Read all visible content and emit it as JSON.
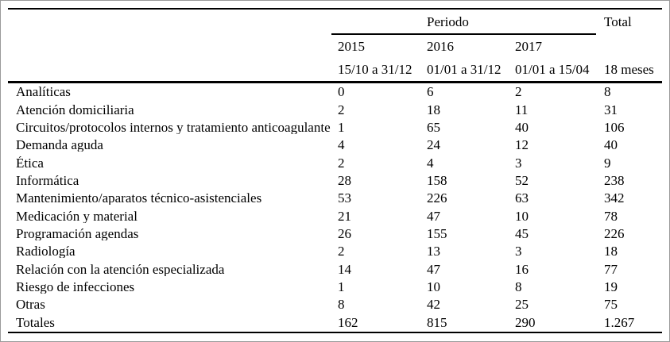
{
  "table": {
    "header": {
      "periodo_label": "Periodo",
      "total_label": "Total",
      "years": [
        "2015",
        "2016",
        "2017"
      ],
      "ranges": [
        "15/10 a 31/12",
        "01/01 a 31/12",
        "01/01 a 15/04"
      ],
      "total_sub": "18 meses"
    },
    "rows": [
      {
        "label": "Analíticas",
        "values": [
          "0",
          "6",
          "2",
          "8"
        ]
      },
      {
        "label": "Atención domiciliaria",
        "values": [
          "2",
          "18",
          "11",
          "31"
        ]
      },
      {
        "label": "Circuitos/protocolos internos y tratamiento anticoagulante",
        "values": [
          "1",
          "65",
          "40",
          "106"
        ]
      },
      {
        "label": "Demanda aguda",
        "values": [
          "4",
          "24",
          "12",
          "40"
        ]
      },
      {
        "label": "Ética",
        "values": [
          "2",
          "4",
          "3",
          "9"
        ]
      },
      {
        "label": "Informática",
        "values": [
          "28",
          "158",
          "52",
          "238"
        ]
      },
      {
        "label": "Mantenimiento/aparatos técnico-asistenciales",
        "values": [
          "53",
          "226",
          "63",
          "342"
        ]
      },
      {
        "label": "Medicación y material",
        "values": [
          "21",
          "47",
          "10",
          "78"
        ]
      },
      {
        "label": "Programación agendas",
        "values": [
          "26",
          "155",
          "45",
          "226"
        ]
      },
      {
        "label": "Radiología",
        "values": [
          "2",
          "13",
          "3",
          "18"
        ]
      },
      {
        "label": "Relación con la atención especializada",
        "values": [
          "14",
          "47",
          "16",
          "77"
        ]
      },
      {
        "label": "Riesgo de infecciones",
        "values": [
          "1",
          "10",
          "8",
          "19"
        ]
      },
      {
        "label": "Otras",
        "values": [
          "8",
          "42",
          "25",
          "75"
        ]
      },
      {
        "label": "Totales",
        "values": [
          "162",
          "815",
          "290",
          "1.267"
        ]
      }
    ]
  }
}
